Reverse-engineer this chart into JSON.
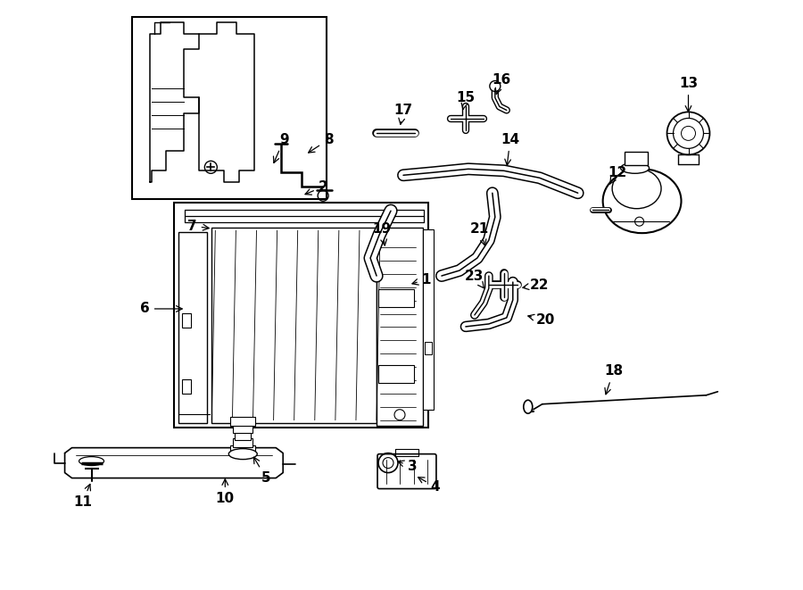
{
  "bg_color": "#ffffff",
  "lc": "#000000",
  "fig_width": 9.0,
  "fig_height": 6.61,
  "dpi": 100,
  "label_fs": 11,
  "parts": {
    "1": [
      4.78,
      3.48,
      4.58,
      3.42
    ],
    "2": [
      3.62,
      4.52,
      3.38,
      4.42
    ],
    "3": [
      4.62,
      1.38,
      4.42,
      1.45
    ],
    "4": [
      4.88,
      1.15,
      4.65,
      1.28
    ],
    "5": [
      2.98,
      1.25,
      2.82,
      1.52
    ],
    "6": [
      1.62,
      3.15,
      2.08,
      3.15
    ],
    "7": [
      2.15,
      4.08,
      2.38,
      4.05
    ],
    "8": [
      3.68,
      5.05,
      3.42,
      4.88
    ],
    "9": [
      3.18,
      5.05,
      3.05,
      4.75
    ],
    "10": [
      2.52,
      1.02,
      2.52,
      1.28
    ],
    "11": [
      0.92,
      0.98,
      1.02,
      1.22
    ],
    "12": [
      6.92,
      4.68,
      6.82,
      4.52
    ],
    "13": [
      7.72,
      5.68,
      7.72,
      5.32
    ],
    "14": [
      5.72,
      5.05,
      5.68,
      4.72
    ],
    "15": [
      5.22,
      5.52,
      5.18,
      5.35
    ],
    "16": [
      5.62,
      5.72,
      5.55,
      5.52
    ],
    "17": [
      4.52,
      5.38,
      4.48,
      5.18
    ],
    "18": [
      6.88,
      2.45,
      6.78,
      2.15
    ],
    "19": [
      4.28,
      4.05,
      4.32,
      3.82
    ],
    "20": [
      6.12,
      3.02,
      5.88,
      3.08
    ],
    "21": [
      5.38,
      4.05,
      5.45,
      3.82
    ],
    "22": [
      6.05,
      3.42,
      5.82,
      3.38
    ],
    "23": [
      5.32,
      3.52,
      5.45,
      3.35
    ]
  }
}
